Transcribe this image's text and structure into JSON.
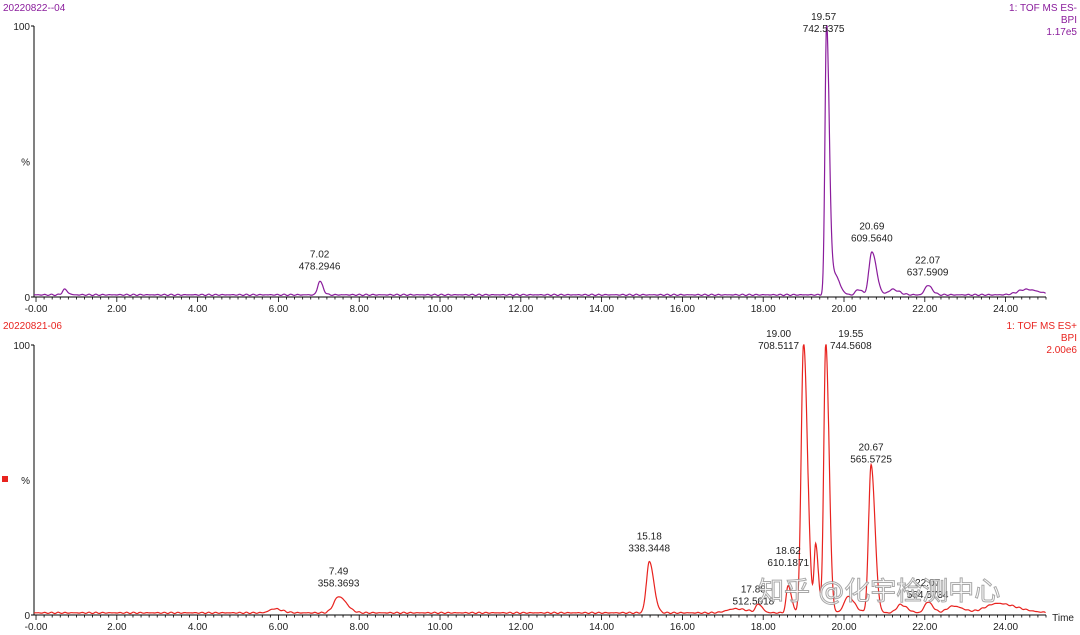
{
  "chart_data": [
    {
      "type": "line",
      "sample_id": "20220822--04",
      "detector": "1: TOF MS ES-",
      "trace": "BPI",
      "intensity": "1.17e5",
      "color": "#8a1c9c",
      "x_unit_label": "",
      "y_tick_labels": [
        "0",
        "%",
        "100"
      ],
      "xlim": [
        -0.05,
        25.0
      ],
      "ylim": [
        0,
        100
      ],
      "baseline": 0.8,
      "x_ticks": [
        "-0.00",
        "2.00",
        "4.00",
        "6.00",
        "8.00",
        "10.00",
        "12.00",
        "14.00",
        "16.00",
        "18.00",
        "20.00",
        "22.00",
        "24.00"
      ],
      "x_tick_values": [
        0,
        2,
        4,
        6,
        8,
        10,
        12,
        14,
        16,
        18,
        20,
        22,
        24
      ],
      "peaks": [
        {
          "rt": 0.7,
          "height": 2,
          "width": 0.05
        },
        {
          "rt": 7.02,
          "height": 5,
          "width": 0.05
        },
        {
          "rt": 19.57,
          "height": 100,
          "width": 0.04
        },
        {
          "rt": 19.75,
          "height": 8,
          "width": 0.08
        },
        {
          "rt": 20.35,
          "height": 2,
          "width": 0.06
        },
        {
          "rt": 20.69,
          "height": 16,
          "width": 0.07
        },
        {
          "rt": 21.2,
          "height": 2,
          "width": 0.1
        },
        {
          "rt": 22.07,
          "height": 3.5,
          "width": 0.07
        },
        {
          "rt": 24.5,
          "height": 2,
          "width": 0.2
        }
      ],
      "annotations": [
        {
          "rt": 7.02,
          "label1": "7.02",
          "label2": "478.2946"
        },
        {
          "rt": 19.57,
          "label1": "19.57",
          "label2": "742.5375"
        },
        {
          "rt": 20.69,
          "label1": "20.69",
          "label2": "609.5640"
        },
        {
          "rt": 22.07,
          "label1": "22.07",
          "label2": "637.5909"
        }
      ]
    },
    {
      "type": "line",
      "sample_id": "20220821-06",
      "detector": "1: TOF MS ES+",
      "trace": "BPI",
      "intensity": "2.00e6",
      "color": "#e8231f",
      "x_unit_label": "Time",
      "y_tick_labels": [
        "0",
        "%",
        "100"
      ],
      "xlim": [
        -0.05,
        25.0
      ],
      "ylim": [
        0,
        100
      ],
      "baseline": 0.8,
      "x_ticks": [
        "-0.00",
        "2.00",
        "4.00",
        "6.00",
        "8.00",
        "10.00",
        "12.00",
        "14.00",
        "16.00",
        "18.00",
        "20.00",
        "22.00",
        "24.00"
      ],
      "x_tick_values": [
        0,
        2,
        4,
        6,
        8,
        10,
        12,
        14,
        16,
        18,
        20,
        22,
        24
      ],
      "peaks": [
        {
          "rt": 5.9,
          "height": 1.5,
          "width": 0.12
        },
        {
          "rt": 7.49,
          "height": 6,
          "width": 0.12
        },
        {
          "rt": 15.18,
          "height": 19,
          "width": 0.07
        },
        {
          "rt": 17.3,
          "height": 1.5,
          "width": 0.2
        },
        {
          "rt": 17.88,
          "height": 3,
          "width": 0.06
        },
        {
          "rt": 18.62,
          "height": 10,
          "width": 0.05
        },
        {
          "rt": 19.0,
          "height": 100,
          "width": 0.06
        },
        {
          "rt": 19.3,
          "height": 25,
          "width": 0.04
        },
        {
          "rt": 19.55,
          "height": 100,
          "width": 0.05
        },
        {
          "rt": 20.1,
          "height": 6,
          "width": 0.1
        },
        {
          "rt": 20.67,
          "height": 55,
          "width": 0.06
        },
        {
          "rt": 21.4,
          "height": 3,
          "width": 0.1
        },
        {
          "rt": 22.07,
          "height": 4,
          "width": 0.08
        },
        {
          "rt": 22.7,
          "height": 2.5,
          "width": 0.15
        },
        {
          "rt": 23.8,
          "height": 3.5,
          "width": 0.3
        }
      ],
      "annotations": [
        {
          "rt": 7.49,
          "label1": "7.49",
          "label2": "358.3693"
        },
        {
          "rt": 15.18,
          "label1": "15.18",
          "label2": "338.3448"
        },
        {
          "rt": 17.88,
          "label1": "17.88",
          "label2": "512.5018"
        },
        {
          "rt": 18.62,
          "label1": "18.62",
          "label2": "610.1871"
        },
        {
          "rt": 19.0,
          "label1": "19.00",
          "label2": "708.5117"
        },
        {
          "rt": 19.55,
          "label1": "19.55",
          "label2": "744.5608"
        },
        {
          "rt": 20.67,
          "label1": "20.67",
          "label2": "565.5725"
        },
        {
          "rt": 22.07,
          "label1": "22.07",
          "label2": "564.5734"
        }
      ]
    }
  ],
  "watermark": "知乎 @化宇检测中心"
}
